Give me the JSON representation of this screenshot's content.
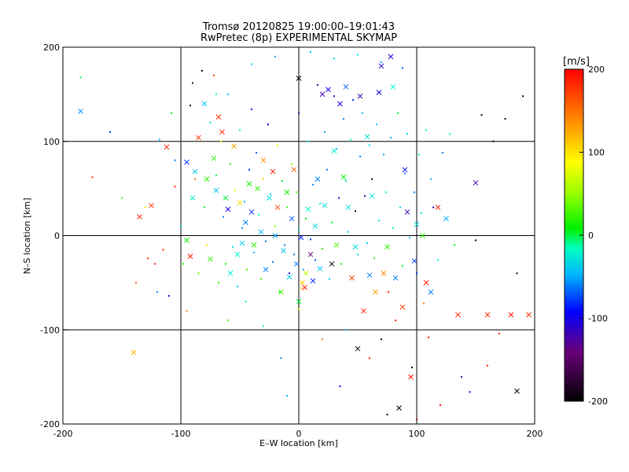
{
  "chart_data": {
    "type": "scatter",
    "title": "Tromsø 20120825 19:00:00–19:01:43",
    "subtitle": "RwPretec (8p) EXPERIMENTAL SKYMAP",
    "xlabel": "E–W location [km]",
    "ylabel": "N–S location [km]",
    "xlim": [
      -200,
      200
    ],
    "ylim": [
      -200,
      200
    ],
    "x_ticks": [
      -200,
      -100,
      0,
      100,
      200
    ],
    "y_ticks": [
      -200,
      -100,
      0,
      100,
      200
    ],
    "grid": true,
    "colorbar": {
      "label": "[m/s]",
      "range": [
        -200,
        200
      ],
      "ticks": [
        200,
        100,
        0,
        -100,
        -200
      ]
    },
    "series": [
      {
        "marker": "x",
        "points": [
          [
            -185,
            132,
            -60
          ],
          [
            -140,
            -124,
            120
          ],
          [
            -135,
            20,
            190
          ],
          [
            -125,
            32,
            180
          ],
          [
            -112,
            94,
            190
          ],
          [
            -95,
            -5,
            10
          ],
          [
            -95,
            78,
            -80
          ],
          [
            -92,
            -22,
            190
          ],
          [
            -90,
            40,
            -20
          ],
          [
            -88,
            68,
            -40
          ],
          [
            -85,
            104,
            170
          ],
          [
            -80,
            140,
            -40
          ],
          [
            -78,
            60,
            20
          ],
          [
            -75,
            -25,
            20
          ],
          [
            -72,
            82,
            20
          ],
          [
            -70,
            48,
            -40
          ],
          [
            -68,
            126,
            180
          ],
          [
            -65,
            110,
            180
          ],
          [
            -62,
            40,
            0
          ],
          [
            -60,
            28,
            -100
          ],
          [
            -58,
            -40,
            -20
          ],
          [
            -55,
            95,
            130
          ],
          [
            -52,
            -20,
            -20
          ],
          [
            -50,
            35,
            100
          ],
          [
            -48,
            -8,
            -40
          ],
          [
            -45,
            14,
            -60
          ],
          [
            -42,
            55,
            10
          ],
          [
            -40,
            25,
            -80
          ],
          [
            -38,
            -10,
            20
          ],
          [
            -35,
            50,
            20
          ],
          [
            -32,
            4,
            -40
          ],
          [
            -30,
            80,
            140
          ],
          [
            -28,
            -36,
            -60
          ],
          [
            -25,
            40,
            -30
          ],
          [
            -22,
            68,
            190
          ],
          [
            -20,
            0,
            -50
          ],
          [
            -18,
            30,
            170
          ],
          [
            -15,
            -60,
            30
          ],
          [
            -13,
            -16,
            -40
          ],
          [
            -10,
            46,
            10
          ],
          [
            -8,
            -44,
            -40
          ],
          [
            -6,
            18,
            -70
          ],
          [
            -4,
            70,
            160
          ],
          [
            -2,
            -30,
            -60
          ],
          [
            0,
            167,
            -200
          ],
          [
            0,
            -70,
            0
          ],
          [
            2,
            -2,
            -80
          ],
          [
            3,
            -50,
            110
          ],
          [
            5,
            -55,
            190
          ],
          [
            6,
            -40,
            60
          ],
          [
            8,
            28,
            -20
          ],
          [
            10,
            -20,
            -140
          ],
          [
            12,
            -48,
            -80
          ],
          [
            14,
            10,
            -30
          ],
          [
            16,
            60,
            -60
          ],
          [
            18,
            -35,
            -40
          ],
          [
            20,
            150,
            -120
          ],
          [
            22,
            32,
            -30
          ],
          [
            25,
            155,
            -100
          ],
          [
            28,
            -30,
            -200
          ],
          [
            30,
            90,
            -20
          ],
          [
            32,
            -10,
            30
          ],
          [
            35,
            140,
            -100
          ],
          [
            38,
            62,
            10
          ],
          [
            40,
            158,
            -70
          ],
          [
            42,
            30,
            -30
          ],
          [
            45,
            -45,
            170
          ],
          [
            48,
            -12,
            -30
          ],
          [
            50,
            -120,
            -200
          ],
          [
            52,
            148,
            -120
          ],
          [
            55,
            -80,
            190
          ],
          [
            58,
            105,
            -30
          ],
          [
            60,
            -42,
            -60
          ],
          [
            62,
            42,
            -30
          ],
          [
            65,
            -60,
            130
          ],
          [
            68,
            152,
            -100
          ],
          [
            70,
            180,
            -110
          ],
          [
            72,
            -40,
            140
          ],
          [
            75,
            -12,
            20
          ],
          [
            78,
            190,
            -100
          ],
          [
            80,
            158,
            -20
          ],
          [
            82,
            -45,
            -60
          ],
          [
            85,
            -183,
            -200
          ],
          [
            88,
            -76,
            170
          ],
          [
            90,
            70,
            -100
          ],
          [
            92,
            25,
            -120
          ],
          [
            95,
            -150,
            190
          ],
          [
            98,
            -27,
            -80
          ],
          [
            100,
            12,
            -30
          ],
          [
            105,
            0,
            20
          ],
          [
            108,
            -50,
            190
          ],
          [
            112,
            -60,
            -60
          ],
          [
            118,
            30,
            190
          ],
          [
            125,
            18,
            -50
          ],
          [
            135,
            -84,
            180
          ],
          [
            150,
            56,
            -120
          ],
          [
            160,
            -84,
            180
          ],
          [
            180,
            -84,
            190
          ],
          [
            185,
            -165,
            -200
          ],
          [
            195,
            -84,
            180
          ]
        ]
      },
      {
        "marker": "dot",
        "points": [
          [
            -185,
            168,
            0
          ],
          [
            -175,
            62,
            180
          ],
          [
            -160,
            110,
            -80
          ],
          [
            -150,
            40,
            20
          ],
          [
            -138,
            -50,
            170
          ],
          [
            -130,
            30,
            100
          ],
          [
            -128,
            -24,
            180
          ],
          [
            -122,
            -30,
            190
          ],
          [
            -118,
            102,
            -40
          ],
          [
            -115,
            -15,
            180
          ],
          [
            -110,
            -64,
            -100
          ],
          [
            -108,
            130,
            10
          ],
          [
            -105,
            80,
            -60
          ],
          [
            -100,
            10,
            -30
          ],
          [
            -98,
            -30,
            20
          ],
          [
            -95,
            -80,
            140
          ],
          [
            -92,
            138,
            -200
          ],
          [
            -90,
            162,
            -180
          ],
          [
            -88,
            60,
            150
          ],
          [
            -85,
            -40,
            30
          ],
          [
            -82,
            175,
            -200
          ],
          [
            -80,
            30,
            0
          ],
          [
            -78,
            -10,
            100
          ],
          [
            -75,
            120,
            -30
          ],
          [
            -72,
            170,
            180
          ],
          [
            -70,
            64,
            0
          ],
          [
            -68,
            -50,
            20
          ],
          [
            -66,
            100,
            80
          ],
          [
            -64,
            20,
            -60
          ],
          [
            -62,
            -30,
            10
          ],
          [
            -60,
            150,
            -40
          ],
          [
            -58,
            76,
            20
          ],
          [
            -56,
            -12,
            -30
          ],
          [
            -54,
            48,
            90
          ],
          [
            -52,
            -54,
            -40
          ],
          [
            -50,
            112,
            -20
          ],
          [
            -48,
            8,
            -60
          ],
          [
            -46,
            36,
            -50
          ],
          [
            -44,
            -36,
            30
          ],
          [
            -42,
            70,
            -80
          ],
          [
            -40,
            134,
            -100
          ],
          [
            -38,
            -18,
            -40
          ],
          [
            -36,
            88,
            -70
          ],
          [
            -34,
            22,
            -20
          ],
          [
            -32,
            -46,
            20
          ],
          [
            -30,
            60,
            110
          ],
          [
            -28,
            -6,
            -60
          ],
          [
            -26,
            118,
            -100
          ],
          [
            -24,
            44,
            -30
          ],
          [
            -22,
            -28,
            -60
          ],
          [
            -20,
            10,
            40
          ],
          [
            -18,
            96,
            80
          ],
          [
            -16,
            -60,
            0
          ],
          [
            -14,
            58,
            0
          ],
          [
            -12,
            -10,
            -60
          ],
          [
            -10,
            30,
            20
          ],
          [
            -8,
            -40,
            -100
          ],
          [
            -6,
            76,
            40
          ],
          [
            -4,
            -20,
            -60
          ],
          [
            -2,
            46,
            30
          ],
          [
            0,
            130,
            -120
          ],
          [
            0,
            -78,
            60
          ],
          [
            0,
            6,
            -40
          ],
          [
            2,
            -56,
            100
          ],
          [
            4,
            -36,
            -50
          ],
          [
            6,
            18,
            10
          ],
          [
            8,
            100,
            -30
          ],
          [
            10,
            -4,
            -80
          ],
          [
            12,
            54,
            -60
          ],
          [
            14,
            -26,
            -70
          ],
          [
            16,
            160,
            -120
          ],
          [
            18,
            34,
            -20
          ],
          [
            20,
            -14,
            20
          ],
          [
            22,
            110,
            -50
          ],
          [
            24,
            70,
            -60
          ],
          [
            26,
            -46,
            -40
          ],
          [
            28,
            14,
            0
          ],
          [
            30,
            148,
            -90
          ],
          [
            32,
            92,
            -40
          ],
          [
            34,
            40,
            -110
          ],
          [
            36,
            -30,
            10
          ],
          [
            38,
            124,
            -60
          ],
          [
            40,
            58,
            -20
          ],
          [
            42,
            4,
            -40
          ],
          [
            44,
            102,
            -20
          ],
          [
            46,
            144,
            -80
          ],
          [
            48,
            26,
            -200
          ],
          [
            50,
            -20,
            -30
          ],
          [
            52,
            84,
            -60
          ],
          [
            54,
            130,
            -50
          ],
          [
            56,
            42,
            -120
          ],
          [
            58,
            -8,
            -40
          ],
          [
            60,
            96,
            -30
          ],
          [
            62,
            60,
            -200
          ],
          [
            64,
            -24,
            20
          ],
          [
            66,
            118,
            -40
          ],
          [
            68,
            16,
            -30
          ],
          [
            70,
            -110,
            -200
          ],
          [
            72,
            86,
            -50
          ],
          [
            74,
            46,
            -20
          ],
          [
            76,
            -60,
            190
          ],
          [
            78,
            104,
            -50
          ],
          [
            80,
            8,
            -20
          ],
          [
            82,
            -90,
            190
          ],
          [
            84,
            130,
            0
          ],
          [
            86,
            30,
            -40
          ],
          [
            88,
            -32,
            0
          ],
          [
            90,
            66,
            -60
          ],
          [
            92,
            108,
            -30
          ],
          [
            94,
            -2,
            -40
          ],
          [
            96,
            -140,
            -200
          ],
          [
            98,
            46,
            -60
          ],
          [
            100,
            -40,
            -80
          ],
          [
            102,
            86,
            -20
          ],
          [
            104,
            24,
            -30
          ],
          [
            106,
            -72,
            150
          ],
          [
            108,
            112,
            -10
          ],
          [
            110,
            -108,
            190
          ],
          [
            112,
            60,
            -50
          ],
          [
            114,
            30,
            -120
          ],
          [
            118,
            -26,
            -30
          ],
          [
            122,
            88,
            -60
          ],
          [
            128,
            108,
            -20
          ],
          [
            132,
            -10,
            10
          ],
          [
            138,
            -150,
            -120
          ],
          [
            145,
            -166,
            -100
          ],
          [
            150,
            -5,
            -200
          ],
          [
            155,
            128,
            -200
          ],
          [
            160,
            -138,
            190
          ],
          [
            165,
            100,
            -200
          ],
          [
            170,
            -104,
            190
          ],
          [
            175,
            124,
            -200
          ],
          [
            185,
            -40,
            -200
          ],
          [
            190,
            148,
            -200
          ],
          [
            -20,
            190,
            -50
          ],
          [
            10,
            195,
            -40
          ],
          [
            30,
            188,
            -30
          ],
          [
            50,
            192,
            -30
          ],
          [
            -40,
            182,
            -40
          ],
          [
            70,
            184,
            -50
          ],
          [
            88,
            178,
            -70
          ],
          [
            -60,
            -90,
            30
          ],
          [
            -30,
            -96,
            -20
          ],
          [
            20,
            -110,
            150
          ],
          [
            -15,
            -130,
            -60
          ],
          [
            40,
            -100,
            -40
          ],
          [
            60,
            -130,
            190
          ],
          [
            -45,
            -70,
            -10
          ],
          [
            120,
            -180,
            190
          ],
          [
            -10,
            -170,
            -50
          ],
          [
            35,
            -160,
            -90
          ],
          [
            75,
            -190,
            -200
          ],
          [
            100,
            -195,
            190
          ],
          [
            -70,
            150,
            -10
          ],
          [
            -105,
            52,
            190
          ],
          [
            -120,
            -60,
            -60
          ]
        ]
      }
    ]
  }
}
